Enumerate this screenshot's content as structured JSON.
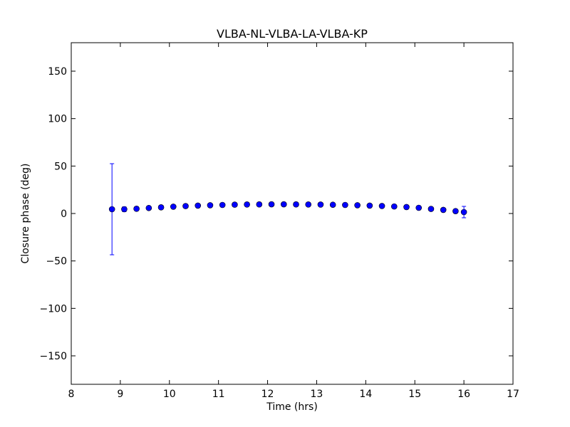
{
  "chart_data": {
    "type": "scatter",
    "title": "VLBA-NL-VLBA-LA-VLBA-KP",
    "xlabel": "Time (hrs)",
    "ylabel": "Closure phase (deg)",
    "xlim": [
      8,
      17
    ],
    "ylim": [
      -180,
      180
    ],
    "xticks": [
      8,
      9,
      10,
      11,
      12,
      13,
      14,
      15,
      16,
      17
    ],
    "xtick_labels": [
      "8",
      "9",
      "10",
      "11",
      "12",
      "13",
      "14",
      "15",
      "16",
      "17"
    ],
    "yticks": [
      -150,
      -100,
      -50,
      0,
      50,
      100,
      150
    ],
    "ytick_labels": [
      "−150",
      "−100",
      "−50",
      "0",
      "50",
      "100",
      "150"
    ],
    "grid": false,
    "marker_color": "#0000ff",
    "errorbar_color": "#0000ff",
    "points": [
      {
        "x": 8.83,
        "y": 4.5,
        "err": 48
      },
      {
        "x": 9.08,
        "y": 4.5,
        "err": 2.5
      },
      {
        "x": 9.33,
        "y": 5.0,
        "err": 2.0
      },
      {
        "x": 9.58,
        "y": 5.8,
        "err": 1.5
      },
      {
        "x": 9.83,
        "y": 6.5,
        "err": 1.5
      },
      {
        "x": 10.08,
        "y": 7.2,
        "err": 1.5
      },
      {
        "x": 10.33,
        "y": 7.8,
        "err": 1.5
      },
      {
        "x": 10.58,
        "y": 8.3,
        "err": 1.5
      },
      {
        "x": 10.83,
        "y": 8.7,
        "err": 1.5
      },
      {
        "x": 11.08,
        "y": 9.0,
        "err": 1.5
      },
      {
        "x": 11.33,
        "y": 9.3,
        "err": 1.5
      },
      {
        "x": 11.58,
        "y": 9.5,
        "err": 1.5
      },
      {
        "x": 11.83,
        "y": 9.6,
        "err": 1.5
      },
      {
        "x": 12.08,
        "y": 9.7,
        "err": 1.5
      },
      {
        "x": 12.33,
        "y": 9.7,
        "err": 1.5
      },
      {
        "x": 12.58,
        "y": 9.6,
        "err": 1.5
      },
      {
        "x": 12.83,
        "y": 9.5,
        "err": 1.5
      },
      {
        "x": 13.08,
        "y": 9.4,
        "err": 1.5
      },
      {
        "x": 13.33,
        "y": 9.2,
        "err": 1.5
      },
      {
        "x": 13.58,
        "y": 9.0,
        "err": 1.5
      },
      {
        "x": 13.83,
        "y": 8.7,
        "err": 1.5
      },
      {
        "x": 14.08,
        "y": 8.3,
        "err": 1.5
      },
      {
        "x": 14.33,
        "y": 7.9,
        "err": 1.5
      },
      {
        "x": 14.58,
        "y": 7.4,
        "err": 1.5
      },
      {
        "x": 14.83,
        "y": 6.8,
        "err": 1.5
      },
      {
        "x": 15.08,
        "y": 6.0,
        "err": 1.5
      },
      {
        "x": 15.33,
        "y": 4.8,
        "err": 1.5
      },
      {
        "x": 15.58,
        "y": 3.8,
        "err": 1.5
      },
      {
        "x": 15.83,
        "y": 2.5,
        "err": 2.0
      },
      {
        "x": 16.0,
        "y": 1.5,
        "err": 6.0
      }
    ]
  }
}
